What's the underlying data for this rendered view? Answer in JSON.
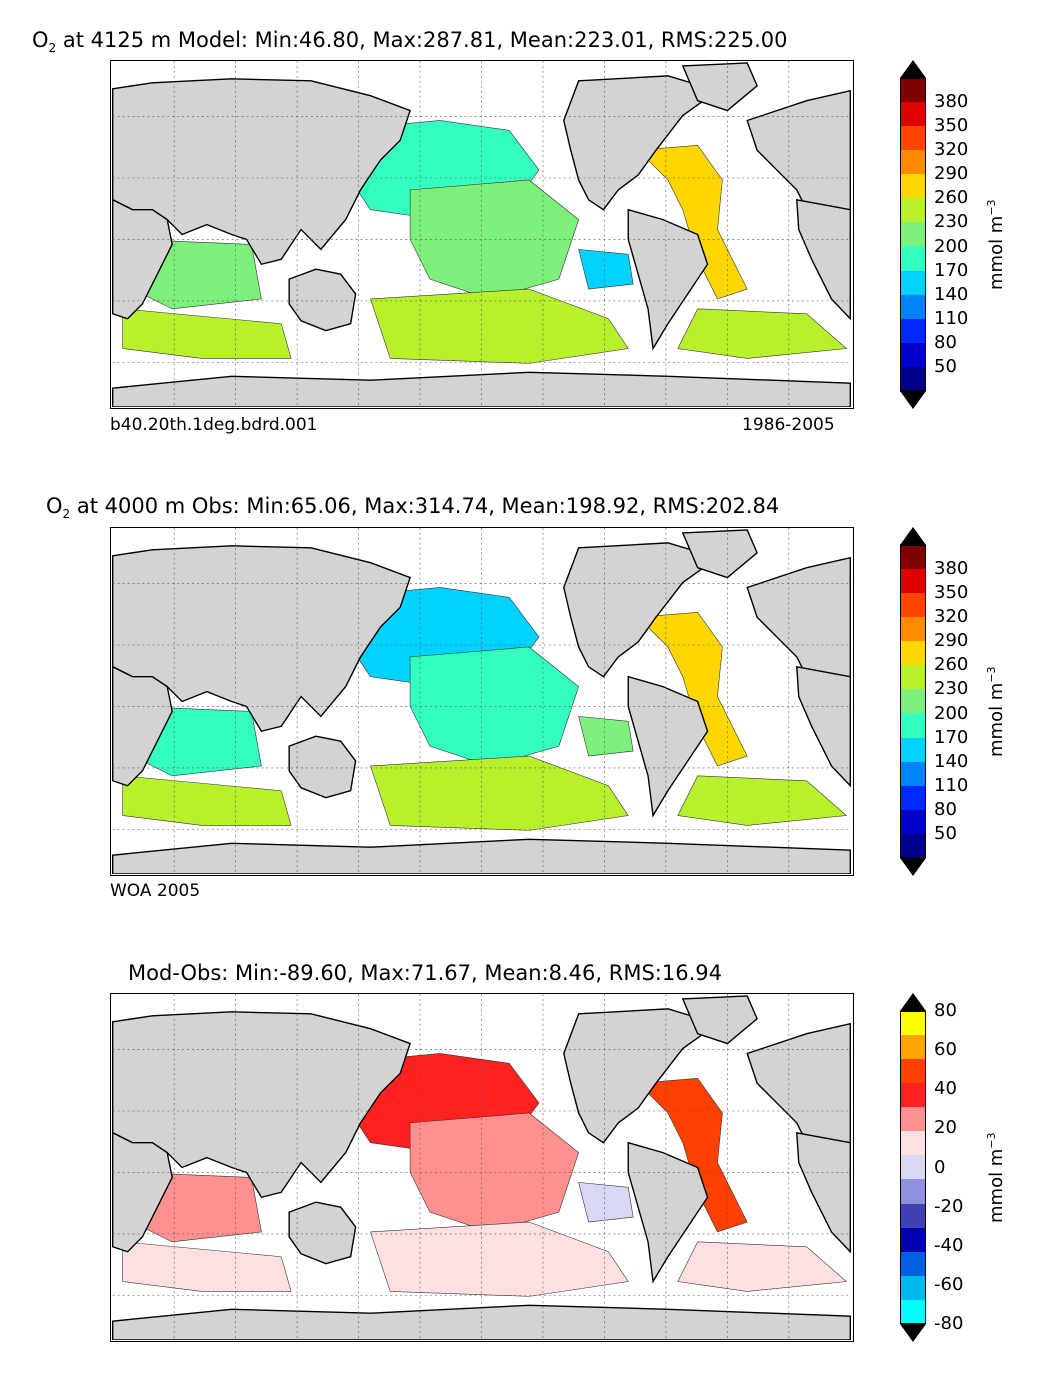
{
  "panels": [
    {
      "title_var": "O",
      "title_sub": "2",
      "title_rest": " at 4125 m Model: Min:46.80, Max:287.81, Mean:223.01, RMS:225.00",
      "left_label": "b40.20th.1deg.bdrd.001",
      "right_label": "1986-2005",
      "colorbar": {
        "unit": "mmol m",
        "unit_sup": "−3",
        "ticks": [
          "380",
          "350",
          "320",
          "290",
          "260",
          "230",
          "200",
          "170",
          "140",
          "110",
          "80",
          "50"
        ],
        "over_color": "#7a0000",
        "under_color": "#00007a",
        "colors": [
          "#7f0000",
          "#e00000",
          "#ff4500",
          "#ff8c00",
          "#ffd700",
          "#b8f02c",
          "#7cf07a",
          "#33ffc1",
          "#00d2ff",
          "#0082ff",
          "#0028ff",
          "#0000c8",
          "#00008b"
        ]
      },
      "fill_colors": {
        "land": "#d3d3d3",
        "ocean_a": "#33ffc1",
        "ocean_b": "#7cf07a",
        "ocean_c": "#b8f02c",
        "ocean_d": "#ffd700",
        "ocean_e": "#00d2ff"
      }
    },
    {
      "title_var": "O",
      "title_sub": "2",
      "title_rest": " at 4000 m Obs: Min:65.06, Max:314.74, Mean:198.92, RMS:202.84",
      "left_label": "WOA 2005",
      "right_label": "",
      "colorbar": {
        "unit": "mmol m",
        "unit_sup": "−3",
        "ticks": [
          "380",
          "350",
          "320",
          "290",
          "260",
          "230",
          "200",
          "170",
          "140",
          "110",
          "80",
          "50"
        ],
        "over_color": "#7a0000",
        "under_color": "#00007a",
        "colors": [
          "#7f0000",
          "#e00000",
          "#ff4500",
          "#ff8c00",
          "#ffd700",
          "#b8f02c",
          "#7cf07a",
          "#33ffc1",
          "#00d2ff",
          "#0082ff",
          "#0028ff",
          "#0000c8",
          "#00008b"
        ]
      },
      "fill_colors": {
        "land": "#d3d3d3",
        "ocean_a": "#00d2ff",
        "ocean_b": "#33ffc1",
        "ocean_c": "#b8f02c",
        "ocean_d": "#ffd700",
        "ocean_e": "#7cf07a"
      }
    },
    {
      "title_var": "",
      "title_sub": "",
      "title_rest": "Mod-Obs: Min:-89.60, Max:71.67, Mean:8.46, RMS:16.94",
      "left_label": "",
      "right_label": "",
      "colorbar": {
        "unit": "mmol m",
        "unit_sup": "−3",
        "ticks": [
          "80",
          "60",
          "40",
          "20",
          "0",
          "-20",
          "-40",
          "-60",
          "-80"
        ],
        "over_color": "#000000",
        "under_color": "#000000",
        "colors": [
          "#ffff00",
          "#ffa500",
          "#ff4000",
          "#ff2020",
          "#ff9090",
          "#ffe0e0",
          "#d8d8f4",
          "#9090e0",
          "#4040b0",
          "#0000b0",
          "#0060e0",
          "#00b8f0",
          "#00ffff"
        ]
      },
      "fill_colors": {
        "land": "#d3d3d3",
        "ocean_a": "#ff2020",
        "ocean_b": "#ff9090",
        "ocean_c": "#ffe0e0",
        "ocean_d": "#ff4000",
        "ocean_e": "#d8d8f4"
      }
    }
  ],
  "chart_data": [
    {
      "type": "heatmap",
      "title": "O2 at 4125 m Model: Min:46.80, Max:287.81, Mean:223.01, RMS:225.00",
      "xlabel": "",
      "ylabel": "",
      "colorbar_label": "mmol m-3",
      "colorbar_ticks": [
        380,
        350,
        320,
        290,
        260,
        230,
        200,
        170,
        140,
        110,
        80,
        50
      ],
      "stats": {
        "min": 46.8,
        "max": 287.81,
        "mean": 223.01,
        "rms": 225.0
      },
      "depth_m": 4125,
      "case": "b40.20th.1deg.bdrd.001",
      "period": "1986-2005"
    },
    {
      "type": "heatmap",
      "title": "O2 at 4000 m Obs: Min:65.06, Max:314.74, Mean:198.92, RMS:202.84",
      "xlabel": "",
      "ylabel": "",
      "colorbar_label": "mmol m-3",
      "colorbar_ticks": [
        380,
        350,
        320,
        290,
        260,
        230,
        200,
        170,
        140,
        110,
        80,
        50
      ],
      "stats": {
        "min": 65.06,
        "max": 314.74,
        "mean": 198.92,
        "rms": 202.84
      },
      "depth_m": 4000,
      "source": "WOA 2005"
    },
    {
      "type": "heatmap",
      "title": "Mod-Obs: Min:-89.60, Max:71.67, Mean:8.46, RMS:16.94",
      "xlabel": "",
      "ylabel": "",
      "colorbar_label": "mmol m-3",
      "colorbar_ticks": [
        80,
        60,
        40,
        20,
        0,
        -20,
        -40,
        -60,
        -80
      ],
      "stats": {
        "min": -89.6,
        "max": 71.67,
        "mean": 8.46,
        "rms": 16.94
      }
    }
  ]
}
